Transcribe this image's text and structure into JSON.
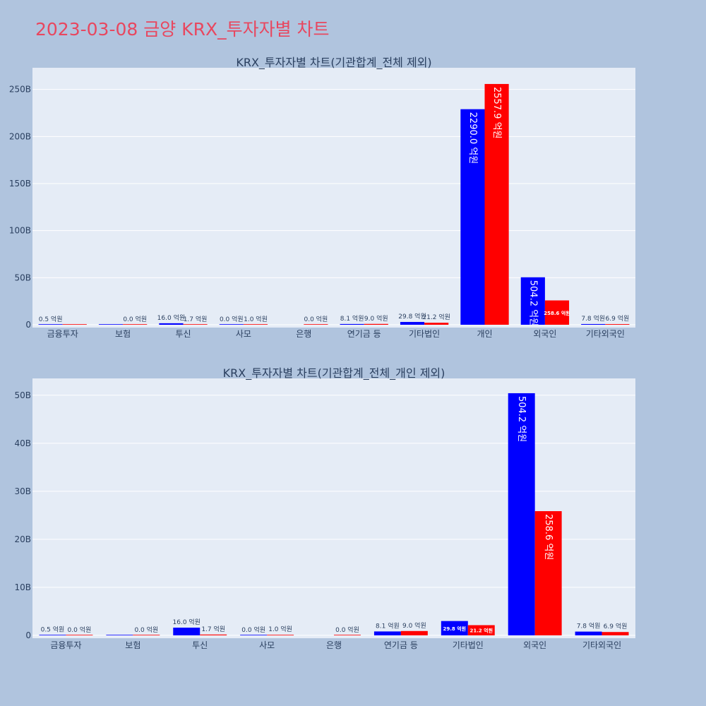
{
  "page": {
    "title": "2023-03-08 금양 KRX_투자자별 차트"
  },
  "colors": {
    "buy": "#0000ff",
    "sell": "#ff0000",
    "plot_bg": "#e5ecf6",
    "page_bg": "#b0c4de",
    "title": "#e8475f"
  },
  "chart_data": [
    {
      "type": "bar",
      "title": "KRX_투자자별 차트(기관합계_전체 제외)",
      "categories": [
        "금융투자",
        "보험",
        "투신",
        "사모",
        "은행",
        "연기금 등",
        "기타법인",
        "개인",
        "외국인",
        "기타외국인"
      ],
      "series": [
        {
          "color": "#0000ff",
          "values": [
            0.05,
            0,
            1.6,
            0,
            null,
            0.81,
            2.98,
            229.0,
            50.42,
            0.78
          ],
          "labels": [
            "0.5 억원",
            "",
            "16.0 억원",
            "0.0 억원",
            "",
            "8.1 억원",
            "29.8 억원",
            "2290.0 억원",
            "504.2 억원",
            "7.8 억원"
          ]
        },
        {
          "color": "#ff0000",
          "values": [
            0,
            0,
            0.17,
            0.1,
            0,
            0.9,
            2.12,
            255.79,
            25.86,
            0.69
          ],
          "labels": [
            "",
            "0.0 억원",
            "1.7 억원",
            "1.0 억원",
            "0.0 억원",
            "9.0 억원",
            "21.2 억원",
            "2557.9 억원",
            "258.6 억원",
            "6.9 억원"
          ]
        }
      ],
      "yticks": [
        "0",
        "50B",
        "100B",
        "150B",
        "200B",
        "250B"
      ],
      "ytick_values": [
        0,
        50,
        100,
        150,
        200,
        250
      ],
      "ylim": [
        -3,
        273
      ],
      "xlabel": "",
      "ylabel": "",
      "grid": true,
      "legend": "none"
    },
    {
      "type": "bar",
      "title": "KRX_투자자별 차트(기관합계_전체_개인 제외)",
      "categories": [
        "금융투자",
        "보험",
        "투신",
        "사모",
        "은행",
        "연기금 등",
        "기타법인",
        "외국인",
        "기타외국인"
      ],
      "series": [
        {
          "color": "#0000ff",
          "values": [
            0.05,
            0,
            1.6,
            0,
            null,
            0.81,
            2.98,
            50.42,
            0.78
          ],
          "labels": [
            "0.5 억원",
            "",
            "16.0 억원",
            "0.0 억원",
            "",
            "8.1 억원",
            "29.8 억원",
            "504.2 억원",
            "7.8 억원"
          ]
        },
        {
          "color": "#ff0000",
          "values": [
            0,
            0,
            0.17,
            0.1,
            0,
            0.9,
            2.12,
            25.86,
            0.69
          ],
          "labels": [
            "0.0 억원",
            "0.0 억원",
            "1.7 억원",
            "1.0 억원",
            "0.0 억원",
            "9.0 억원",
            "21.2 억원",
            "258.6 억원",
            "6.9 억원"
          ]
        }
      ],
      "yticks": [
        "0",
        "10B",
        "20B",
        "30B",
        "40B",
        "50B"
      ],
      "ytick_values": [
        0,
        10,
        20,
        30,
        40,
        50
      ],
      "ylim": [
        -0.6,
        53.5
      ],
      "xlabel": "",
      "ylabel": "",
      "grid": true,
      "legend": "none"
    }
  ]
}
